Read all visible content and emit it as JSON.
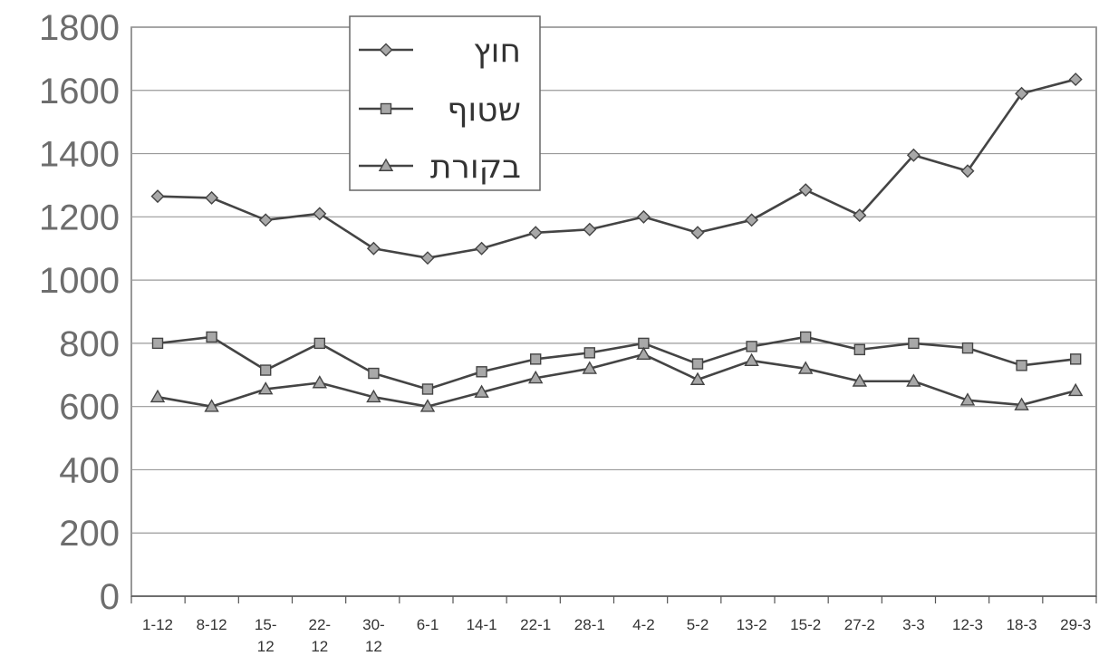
{
  "chart_data": {
    "type": "line",
    "categories": [
      [
        "1-12"
      ],
      [
        "8-12"
      ],
      [
        "15-",
        "12"
      ],
      [
        "22-",
        "12"
      ],
      [
        "30-",
        "12"
      ],
      [
        "6-1"
      ],
      [
        "14-1"
      ],
      [
        "22-1"
      ],
      [
        "28-1"
      ],
      [
        "4-2"
      ],
      [
        "5-2"
      ],
      [
        "13-2"
      ],
      [
        "15-2"
      ],
      [
        "27-2"
      ],
      [
        "3-3"
      ],
      [
        "12-3"
      ],
      [
        "18-3"
      ],
      [
        "29-3"
      ]
    ],
    "series": [
      {
        "name": "חוץ",
        "marker": "diamond",
        "values": [
          1265,
          1260,
          1190,
          1210,
          1100,
          1070,
          1100,
          1150,
          1160,
          1200,
          1150,
          1190,
          1285,
          1205,
          1395,
          1345,
          1590,
          1635
        ]
      },
      {
        "name": "שטוף",
        "marker": "square",
        "values": [
          800,
          820,
          715,
          800,
          705,
          655,
          710,
          750,
          770,
          800,
          735,
          790,
          820,
          780,
          800,
          785,
          730,
          750
        ]
      },
      {
        "name": "בקורת",
        "marker": "triangle",
        "values": [
          630,
          600,
          655,
          675,
          630,
          600,
          645,
          690,
          720,
          765,
          685,
          745,
          720,
          680,
          680,
          620,
          605,
          650
        ]
      }
    ],
    "yticks": [
      "0",
      "200",
      "400",
      "600",
      "800",
      "1000",
      "1200",
      "1400",
      "1600",
      "1800"
    ],
    "ylim": [
      0,
      1800
    ],
    "grid": true,
    "legend_position": "top-left",
    "colors": {
      "line": "#444444",
      "marker_fill": "#a8a8a8",
      "grid": "#9a9a9a",
      "axis": "#555555"
    }
  }
}
